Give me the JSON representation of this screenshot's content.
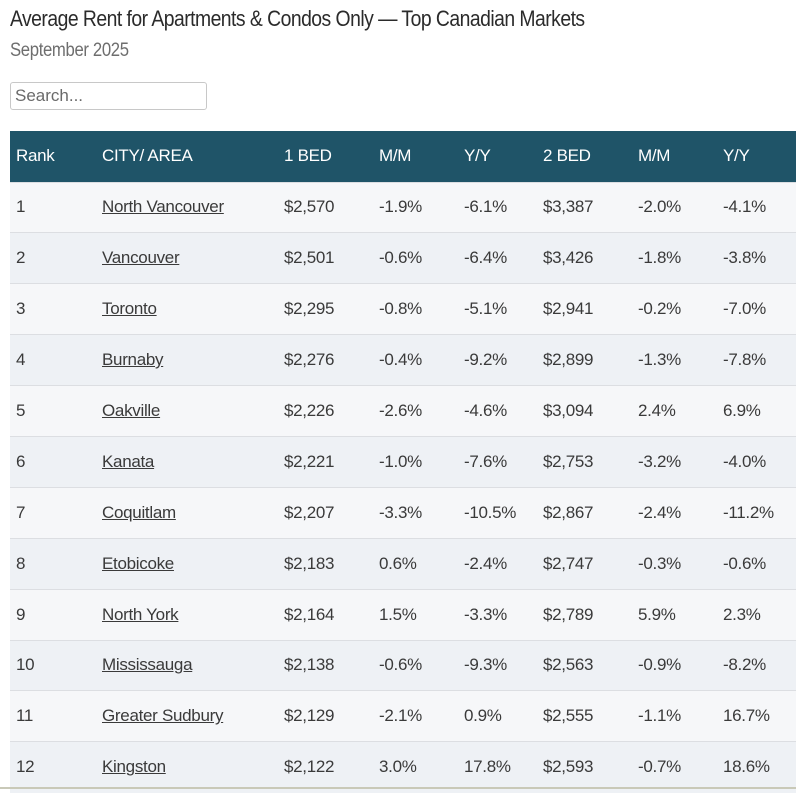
{
  "header": {
    "title": "Average Rent for Apartments & Condos Only — Top Canadian Markets",
    "subtitle": "September 2025"
  },
  "search": {
    "placeholder": "Search...",
    "value": ""
  },
  "colors": {
    "header_bg": "#1f5468",
    "header_text": "#ffffff",
    "row_odd": "#f6f7f9",
    "row_even": "#eef1f5"
  },
  "table": {
    "columns": [
      "Rank",
      "CITY/ AREA",
      "1 BED",
      "M/M",
      "Y/Y",
      "2 BED",
      "M/M",
      "Y/Y"
    ],
    "rows": [
      {
        "rank": "1",
        "city": "North Vancouver",
        "bed1": "$2,570",
        "bed1_mm": "-1.9%",
        "bed1_yy": "-6.1%",
        "bed2": "$3,387",
        "bed2_mm": "-2.0%",
        "bed2_yy": "-4.1%"
      },
      {
        "rank": "2",
        "city": "Vancouver",
        "bed1": "$2,501",
        "bed1_mm": "-0.6%",
        "bed1_yy": "-6.4%",
        "bed2": "$3,426",
        "bed2_mm": "-1.8%",
        "bed2_yy": "-3.8%"
      },
      {
        "rank": "3",
        "city": "Toronto",
        "bed1": "$2,295",
        "bed1_mm": "-0.8%",
        "bed1_yy": "-5.1%",
        "bed2": "$2,941",
        "bed2_mm": "-0.2%",
        "bed2_yy": "-7.0%"
      },
      {
        "rank": "4",
        "city": "Burnaby",
        "bed1": "$2,276",
        "bed1_mm": "-0.4%",
        "bed1_yy": "-9.2%",
        "bed2": "$2,899",
        "bed2_mm": "-1.3%",
        "bed2_yy": "-7.8%"
      },
      {
        "rank": "5",
        "city": "Oakville",
        "bed1": "$2,226",
        "bed1_mm": "-2.6%",
        "bed1_yy": "-4.6%",
        "bed2": "$3,094",
        "bed2_mm": "2.4%",
        "bed2_yy": "6.9%"
      },
      {
        "rank": "6",
        "city": "Kanata",
        "bed1": "$2,221",
        "bed1_mm": "-1.0%",
        "bed1_yy": "-7.6%",
        "bed2": "$2,753",
        "bed2_mm": "-3.2%",
        "bed2_yy": "-4.0%"
      },
      {
        "rank": "7",
        "city": "Coquitlam",
        "bed1": "$2,207",
        "bed1_mm": "-3.3%",
        "bed1_yy": "-10.5%",
        "bed2": "$2,867",
        "bed2_mm": "-2.4%",
        "bed2_yy": "-11.2%"
      },
      {
        "rank": "8",
        "city": "Etobicoke",
        "bed1": "$2,183",
        "bed1_mm": "0.6%",
        "bed1_yy": "-2.4%",
        "bed2": "$2,747",
        "bed2_mm": "-0.3%",
        "bed2_yy": "-0.6%"
      },
      {
        "rank": "9",
        "city": "North York",
        "bed1": "$2,164",
        "bed1_mm": "1.5%",
        "bed1_yy": "-3.3%",
        "bed2": "$2,789",
        "bed2_mm": "5.9%",
        "bed2_yy": "2.3%"
      },
      {
        "rank": "10",
        "city": "Mississauga",
        "bed1": "$2,138",
        "bed1_mm": "-0.6%",
        "bed1_yy": "-9.3%",
        "bed2": "$2,563",
        "bed2_mm": "-0.9%",
        "bed2_yy": "-8.2%"
      },
      {
        "rank": "11",
        "city": "Greater Sudbury",
        "bed1": "$2,129",
        "bed1_mm": "-2.1%",
        "bed1_yy": "0.9%",
        "bed2": "$2,555",
        "bed2_mm": "-1.1%",
        "bed2_yy": "16.7%"
      },
      {
        "rank": "12",
        "city": "Kingston",
        "bed1": "$2,122",
        "bed1_mm": "3.0%",
        "bed1_yy": "17.8%",
        "bed2": "$2,593",
        "bed2_mm": "-0.7%",
        "bed2_yy": "18.6%"
      }
    ]
  }
}
